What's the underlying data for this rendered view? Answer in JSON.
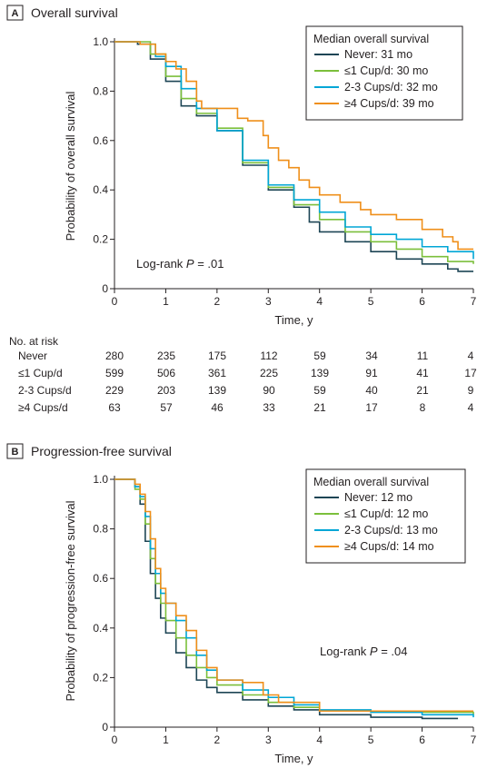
{
  "chart_data": [
    {
      "type": "line",
      "panel_label": "A",
      "title": "Overall survival",
      "xlabel": "Time, y",
      "ylabel": "Probability of overall survival",
      "xlim": [
        0,
        7
      ],
      "ylim": [
        0,
        1.0
      ],
      "x_ticks": [
        "0",
        "1",
        "2",
        "3",
        "4",
        "5",
        "6",
        "7"
      ],
      "y_ticks": [
        "0",
        "0.2",
        "0.4",
        "0.6",
        "0.8",
        "1.0"
      ],
      "legend_title": "Median overall survival",
      "legend_position": "top-right",
      "annotation": {
        "prefix": "Log-rank ",
        "var": "P",
        "suffix": " = .01"
      },
      "series": [
        {
          "name": "Never: 31 mo",
          "color": "#1d4555",
          "points": [
            [
              0,
              1
            ],
            [
              0.45,
              0.99
            ],
            [
              0.7,
              0.93
            ],
            [
              1,
              0.84
            ],
            [
              1.3,
              0.74
            ],
            [
              1.6,
              0.7
            ],
            [
              2,
              0.64
            ],
            [
              2.5,
              0.5
            ],
            [
              3,
              0.4
            ],
            [
              3.5,
              0.33
            ],
            [
              3.8,
              0.27
            ],
            [
              4,
              0.23
            ],
            [
              4.5,
              0.19
            ],
            [
              5,
              0.15
            ],
            [
              5.5,
              0.12
            ],
            [
              6,
              0.1
            ],
            [
              6.5,
              0.08
            ],
            [
              6.7,
              0.07
            ],
            [
              7,
              0.07
            ]
          ]
        },
        {
          "name": "≤1 Cup/d: 30 mo",
          "color": "#7bbf3b",
          "points": [
            [
              0,
              1
            ],
            [
              0.45,
              1
            ],
            [
              0.7,
              0.95
            ],
            [
              1,
              0.86
            ],
            [
              1.3,
              0.77
            ],
            [
              1.6,
              0.71
            ],
            [
              2,
              0.65
            ],
            [
              2.5,
              0.51
            ],
            [
              3,
              0.41
            ],
            [
              3.5,
              0.34
            ],
            [
              4,
              0.28
            ],
            [
              4.5,
              0.23
            ],
            [
              5,
              0.19
            ],
            [
              5.5,
              0.16
            ],
            [
              6,
              0.13
            ],
            [
              6.5,
              0.11
            ],
            [
              7,
              0.1
            ]
          ]
        },
        {
          "name": "2-3 Cups/d: 32 mo",
          "color": "#00a6d6",
          "points": [
            [
              0,
              1
            ],
            [
              0.5,
              0.99
            ],
            [
              0.8,
              0.94
            ],
            [
              1,
              0.9
            ],
            [
              1.3,
              0.81
            ],
            [
              1.6,
              0.73
            ],
            [
              2,
              0.64
            ],
            [
              2.5,
              0.52
            ],
            [
              3,
              0.42
            ],
            [
              3.5,
              0.36
            ],
            [
              4,
              0.31
            ],
            [
              4.5,
              0.25
            ],
            [
              5,
              0.22
            ],
            [
              5.5,
              0.2
            ],
            [
              6,
              0.17
            ],
            [
              6.5,
              0.15
            ],
            [
              7,
              0.12
            ]
          ]
        },
        {
          "name": "≥4 Cups/d: 39 mo",
          "color": "#ef8f1a",
          "points": [
            [
              0,
              1
            ],
            [
              0.5,
              0.99
            ],
            [
              0.8,
              0.95
            ],
            [
              1,
              0.92
            ],
            [
              1.2,
              0.89
            ],
            [
              1.4,
              0.84
            ],
            [
              1.6,
              0.76
            ],
            [
              1.7,
              0.73
            ],
            [
              2.2,
              0.73
            ],
            [
              2.4,
              0.69
            ],
            [
              2.6,
              0.68
            ],
            [
              2.9,
              0.62
            ],
            [
              3,
              0.57
            ],
            [
              3.2,
              0.52
            ],
            [
              3.4,
              0.49
            ],
            [
              3.6,
              0.44
            ],
            [
              3.8,
              0.41
            ],
            [
              4,
              0.38
            ],
            [
              4.4,
              0.35
            ],
            [
              4.8,
              0.32
            ],
            [
              5,
              0.3
            ],
            [
              5.5,
              0.28
            ],
            [
              6,
              0.24
            ],
            [
              6.4,
              0.21
            ],
            [
              6.6,
              0.19
            ],
            [
              6.7,
              0.16
            ],
            [
              7,
              0.16
            ]
          ]
        }
      ],
      "risk_table": {
        "header": "No. at risk",
        "rows": [
          {
            "label": "Never",
            "values": [
              "280",
              "235",
              "175",
              "112",
              "59",
              "34",
              "11",
              "4"
            ]
          },
          {
            "label": "≤1 Cup/d",
            "values": [
              "599",
              "506",
              "361",
              "225",
              "139",
              "91",
              "41",
              "17"
            ]
          },
          {
            "label": "2-3 Cups/d",
            "values": [
              "229",
              "203",
              "139",
              "90",
              "59",
              "40",
              "21",
              "9"
            ]
          },
          {
            "label": "≥4 Cups/d",
            "values": [
              "63",
              "57",
              "46",
              "33",
              "21",
              "17",
              "8",
              "4"
            ]
          }
        ]
      }
    },
    {
      "type": "line",
      "panel_label": "B",
      "title": "Progression-free survival",
      "xlabel": "Time, y",
      "ylabel": "Probability of progression-free survival",
      "xlim": [
        0,
        7
      ],
      "ylim": [
        0,
        1.0
      ],
      "x_ticks": [
        "0",
        "1",
        "2",
        "3",
        "4",
        "5",
        "6",
        "7"
      ],
      "y_ticks": [
        "0",
        "0.2",
        "0.4",
        "0.6",
        "0.8",
        "1.0"
      ],
      "legend_title": "Median overall survival",
      "legend_position": "top-right",
      "annotation": {
        "prefix": "Log-rank ",
        "var": "P",
        "suffix": " = .04"
      },
      "series": [
        {
          "name": "Never: 12 mo",
          "color": "#1d4555",
          "points": [
            [
              0,
              1
            ],
            [
              0.3,
              1
            ],
            [
              0.4,
              0.97
            ],
            [
              0.5,
              0.9
            ],
            [
              0.6,
              0.75
            ],
            [
              0.7,
              0.62
            ],
            [
              0.8,
              0.52
            ],
            [
              0.9,
              0.44
            ],
            [
              1,
              0.38
            ],
            [
              1.2,
              0.3
            ],
            [
              1.4,
              0.24
            ],
            [
              1.6,
              0.19
            ],
            [
              1.8,
              0.16
            ],
            [
              2,
              0.14
            ],
            [
              2.5,
              0.11
            ],
            [
              3,
              0.085
            ],
            [
              3.5,
              0.07
            ],
            [
              4,
              0.05
            ],
            [
              5,
              0.04
            ],
            [
              6,
              0.035
            ],
            [
              6.7,
              0.035
            ]
          ]
        },
        {
          "name": "≤1 Cup/d: 12 mo",
          "color": "#7bbf3b",
          "points": [
            [
              0,
              1
            ],
            [
              0.3,
              1
            ],
            [
              0.4,
              0.96
            ],
            [
              0.5,
              0.92
            ],
            [
              0.6,
              0.82
            ],
            [
              0.7,
              0.68
            ],
            [
              0.8,
              0.58
            ],
            [
              0.9,
              0.5
            ],
            [
              1,
              0.43
            ],
            [
              1.2,
              0.36
            ],
            [
              1.4,
              0.29
            ],
            [
              1.6,
              0.24
            ],
            [
              1.8,
              0.2
            ],
            [
              2,
              0.17
            ],
            [
              2.5,
              0.13
            ],
            [
              3,
              0.1
            ],
            [
              3.5,
              0.08
            ],
            [
              4,
              0.065
            ],
            [
              5,
              0.06
            ],
            [
              6,
              0.06
            ],
            [
              7,
              0.05
            ]
          ]
        },
        {
          "name": "2-3 Cups/d: 13 mo",
          "color": "#00a6d6",
          "points": [
            [
              0,
              1
            ],
            [
              0.3,
              1
            ],
            [
              0.4,
              0.97
            ],
            [
              0.5,
              0.93
            ],
            [
              0.6,
              0.85
            ],
            [
              0.7,
              0.72
            ],
            [
              0.8,
              0.62
            ],
            [
              0.9,
              0.54
            ],
            [
              1,
              0.5
            ],
            [
              1.2,
              0.43
            ],
            [
              1.4,
              0.36
            ],
            [
              1.6,
              0.29
            ],
            [
              1.8,
              0.23
            ],
            [
              2,
              0.19
            ],
            [
              2.5,
              0.15
            ],
            [
              3,
              0.12
            ],
            [
              3.5,
              0.09
            ],
            [
              4,
              0.07
            ],
            [
              5,
              0.06
            ],
            [
              6,
              0.05
            ],
            [
              7,
              0.04
            ]
          ]
        },
        {
          "name": "≥4 Cups/d: 14 mo",
          "color": "#ef8f1a",
          "points": [
            [
              0,
              1
            ],
            [
              0.3,
              1
            ],
            [
              0.4,
              0.98
            ],
            [
              0.5,
              0.94
            ],
            [
              0.6,
              0.87
            ],
            [
              0.7,
              0.76
            ],
            [
              0.8,
              0.64
            ],
            [
              0.9,
              0.56
            ],
            [
              1,
              0.5
            ],
            [
              1.2,
              0.45
            ],
            [
              1.4,
              0.39
            ],
            [
              1.6,
              0.31
            ],
            [
              1.8,
              0.24
            ],
            [
              2,
              0.19
            ],
            [
              2.5,
              0.18
            ],
            [
              2.9,
              0.13
            ],
            [
              3.2,
              0.1
            ],
            [
              3.6,
              0.1
            ],
            [
              4,
              0.065
            ],
            [
              5,
              0.065
            ],
            [
              6,
              0.065
            ],
            [
              7,
              0.065
            ]
          ]
        }
      ]
    }
  ]
}
